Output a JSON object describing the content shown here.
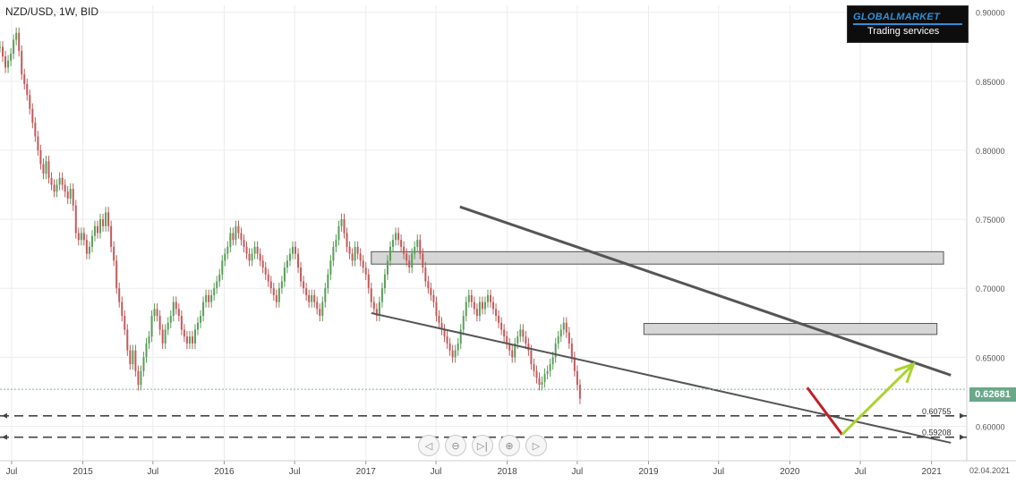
{
  "header": {
    "symbol": "NZD/USD, 1W, BID"
  },
  "logo": {
    "brand": "GLOBALMARKET",
    "tagline": "Trading services"
  },
  "current_price": "0.62681",
  "last_date": "02.04.2021",
  "navigation": {
    "icons": [
      "scroll-left-icon",
      "zoom-out-icon",
      "scroll-to-end-icon",
      "zoom-in-icon",
      "scroll-right-icon"
    ],
    "glyphs": [
      "◁",
      "⊖",
      "▷|",
      "⊕",
      "▷"
    ]
  },
  "colors": {
    "up": "#5a9e5a",
    "down": "#c25a5a",
    "resistance": "#d4d4d4",
    "arrow_down": "#c0222a",
    "arrow_up": "#a8d42b",
    "channel": "#555555",
    "price_tag": "#6aa88a"
  },
  "chart_data": {
    "type": "candlestick",
    "title": "NZD/USD, 1W, BID",
    "ylim": [
      0.575,
      0.905
    ],
    "yticks": [
      "0.90000",
      "0.85000",
      "0.80000",
      "0.75000",
      "0.70000",
      "0.65000",
      "0.60000"
    ],
    "x_tick_labels": [
      "Jul",
      "2015",
      "Jul",
      "2016",
      "Jul",
      "2017",
      "Jul",
      "2018",
      "Jul",
      "2019",
      "Jul",
      "2020",
      "Jul",
      "2021"
    ],
    "grid": true,
    "series": [
      {
        "values": [
          0.875,
          0.868,
          0.86,
          0.865,
          0.87,
          0.88,
          0.885,
          0.872,
          0.855,
          0.848,
          0.84,
          0.83,
          0.82,
          0.81,
          0.8,
          0.79,
          0.783,
          0.792,
          0.78,
          0.775,
          0.77,
          0.775,
          0.78,
          0.775,
          0.77,
          0.765,
          0.772,
          0.76,
          0.74,
          0.735,
          0.74,
          0.735,
          0.725,
          0.73,
          0.738,
          0.745,
          0.74,
          0.75,
          0.745,
          0.755,
          0.745,
          0.73,
          0.72,
          0.7,
          0.69,
          0.68,
          0.67,
          0.655,
          0.645,
          0.655,
          0.64,
          0.63,
          0.64,
          0.65,
          0.66,
          0.665,
          0.68,
          0.685,
          0.68,
          0.67,
          0.66,
          0.67,
          0.675,
          0.68,
          0.69,
          0.685,
          0.68,
          0.67,
          0.665,
          0.66,
          0.665,
          0.66,
          0.67,
          0.675,
          0.68,
          0.69,
          0.695,
          0.69,
          0.695,
          0.7,
          0.705,
          0.71,
          0.72,
          0.725,
          0.73,
          0.74,
          0.735,
          0.745,
          0.74,
          0.735,
          0.73,
          0.725,
          0.72,
          0.725,
          0.73,
          0.725,
          0.72,
          0.715,
          0.71,
          0.705,
          0.7,
          0.695,
          0.69,
          0.7,
          0.705,
          0.715,
          0.72,
          0.725,
          0.73,
          0.725,
          0.715,
          0.705,
          0.7,
          0.695,
          0.69,
          0.695,
          0.69,
          0.685,
          0.68,
          0.69,
          0.7,
          0.71,
          0.72,
          0.73,
          0.735,
          0.745,
          0.75,
          0.74,
          0.73,
          0.725,
          0.72,
          0.73,
          0.725,
          0.72,
          0.715,
          0.71,
          0.7,
          0.69,
          0.685,
          0.68,
          0.69,
          0.7,
          0.71,
          0.72,
          0.73,
          0.735,
          0.74,
          0.735,
          0.73,
          0.725,
          0.72,
          0.715,
          0.725,
          0.73,
          0.735,
          0.725,
          0.715,
          0.705,
          0.7,
          0.695,
          0.69,
          0.68,
          0.675,
          0.67,
          0.665,
          0.66,
          0.655,
          0.65,
          0.655,
          0.66,
          0.67,
          0.68,
          0.69,
          0.695,
          0.69,
          0.685,
          0.68,
          0.69,
          0.685,
          0.69,
          0.695,
          0.69,
          0.685,
          0.68,
          0.675,
          0.67,
          0.665,
          0.66,
          0.655,
          0.65,
          0.66,
          0.665,
          0.67,
          0.665,
          0.66,
          0.655,
          0.645,
          0.64,
          0.635,
          0.63,
          0.632,
          0.638,
          0.64,
          0.645,
          0.65,
          0.66,
          0.665,
          0.67,
          0.675,
          0.668,
          0.66,
          0.65,
          0.64,
          0.63,
          0.62
        ]
      }
    ],
    "resistance_zones": [
      {
        "from": "2017-01-15",
        "to": "2021-02-01",
        "y1": 0.7175,
        "y2": 0.7265
      },
      {
        "from": "2018-12-20",
        "to": "2021-01-15",
        "y1": 0.6665,
        "y2": 0.6745
      }
    ],
    "channel_lines": [
      {
        "from": [
          "2017-09-01",
          0.759
        ],
        "to": [
          "2021-02-20",
          0.637
        ]
      },
      {
        "from": [
          "2017-01-15",
          0.682
        ],
        "to": [
          "2021-02-20",
          0.588
        ]
      }
    ],
    "support_levels": [
      {
        "value": 0.60755,
        "label": "0.60755"
      },
      {
        "value": 0.59208,
        "label": "0.59208"
      }
    ],
    "projection": {
      "down": {
        "from": [
          "2020-02-15",
          0.628
        ],
        "to": [
          "2020-05-15",
          0.594
        ]
      },
      "up": {
        "from": [
          "2020-05-15",
          0.594
        ],
        "to": [
          "2020-11-15",
          0.645
        ]
      }
    }
  }
}
